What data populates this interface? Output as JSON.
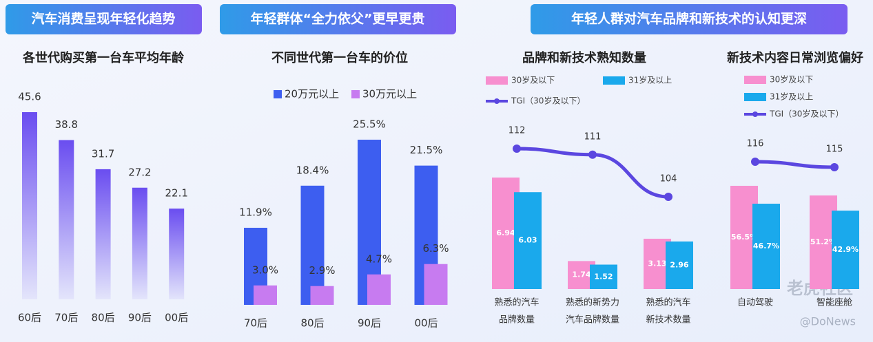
{
  "banners": [
    "汽车消费呈现年轻化趋势",
    "年轻群体“全力依父”更早更贵",
    "年轻人群对汽车品牌和新技术的认知更深"
  ],
  "watermark": {
    "logo": "老虎社区",
    "source": "@DoNews"
  },
  "chart_data": [
    {
      "type": "bar",
      "title": "各世代购买第一台车平均年龄",
      "categories": [
        "60后",
        "70后",
        "80后",
        "90后",
        "00后"
      ],
      "values": [
        45.6,
        38.8,
        31.7,
        27.2,
        22.1
      ],
      "color": "#6a4df0"
    },
    {
      "type": "bar",
      "title": "不同世代第一台车的价位",
      "categories": [
        "70后",
        "80后",
        "90后",
        "00后"
      ],
      "series": [
        {
          "name": "20万元以上",
          "color": "#3d5ef0",
          "values": [
            11.9,
            18.4,
            25.5,
            21.5
          ],
          "value_labels": [
            "11.9%",
            "18.4%",
            "25.5%",
            "21.5%"
          ]
        },
        {
          "name": "30万元以上",
          "color": "#c77bf0",
          "values": [
            3.0,
            2.9,
            4.7,
            6.3
          ],
          "value_labels": [
            "3.0%",
            "2.9%",
            "4.7%",
            "6.3%"
          ]
        }
      ]
    },
    {
      "type": "combo",
      "title": "品牌和新技术熟知数量",
      "categories": [
        [
          "熟悉的汽车",
          "品牌数量"
        ],
        [
          "熟悉的新势力",
          "汽车品牌数量"
        ],
        [
          "熟悉的汽车",
          "新技术数量"
        ]
      ],
      "series": [
        {
          "name": "30岁及以下",
          "color": "#f78fcf",
          "values": [
            6.94,
            1.74,
            3.13
          ]
        },
        {
          "name": "31岁及以上",
          "color": "#1aa9ec",
          "values": [
            6.03,
            1.52,
            2.96
          ]
        },
        {
          "name": "TGI（30岁及以下）",
          "color": "#5b47e0",
          "values": [
            112,
            111,
            104
          ],
          "axis": "y2"
        }
      ]
    },
    {
      "type": "combo",
      "title": "新技术内容日常浏览偏好",
      "categories": [
        [
          "自动驾驶"
        ],
        [
          "智能座舱"
        ]
      ],
      "series": [
        {
          "name": "30岁及以下",
          "color": "#f78fcf",
          "values": [
            56.5,
            51.2
          ],
          "value_labels": [
            "56.5%",
            "51.2%"
          ]
        },
        {
          "name": "31岁及以上",
          "color": "#1aa9ec",
          "values": [
            46.7,
            42.9
          ],
          "value_labels": [
            "46.7%",
            "42.9%"
          ]
        },
        {
          "name": "TGI（30岁及以下）",
          "color": "#5b47e0",
          "values": [
            116,
            115
          ],
          "axis": "y2"
        }
      ]
    }
  ]
}
